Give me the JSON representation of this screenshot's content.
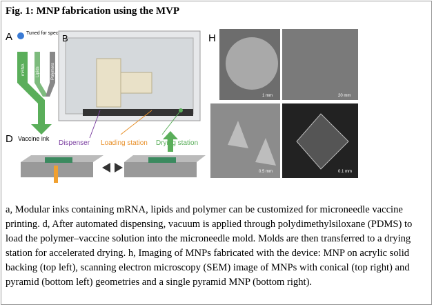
{
  "header": {
    "title": "Fig. 1: MNP fabrication using the MVP"
  },
  "figure": {
    "panel_a": {
      "label": "A",
      "note": "Tuned for specific vaccines",
      "inks": [
        "mRNA",
        "Lipids",
        "Polymers"
      ]
    },
    "panel_b": {
      "label": "B",
      "stations": [
        "Dispenser",
        "Loading station",
        "Drying station"
      ]
    },
    "panel_d": {
      "label": "D",
      "ink": "Vaccine ink"
    },
    "panel_h": {
      "label": "H",
      "scale_bars": [
        "1 mm",
        "20 mm",
        "0.5 mm",
        "0.1 mm"
      ]
    }
  },
  "caption": "a, Modular inks containing mRNA, lipids and polymer can be customized for microneedle vaccine printing. d, After automated dispensing, vacuum is applied through polydimethylsiloxane (PDMS) to load the polymer–vaccine solution into the microneedle mold. Molds are then transferred to a drying station for accelerated drying. h, Imaging of MNPs fabricated with the device: MNP on acrylic solid backing (top left), scanning electron microscopy (SEM) image of MNPs with conical (top right) and pyramid (bottom left) geometries and a single pyramid MNP (bottom right)."
}
